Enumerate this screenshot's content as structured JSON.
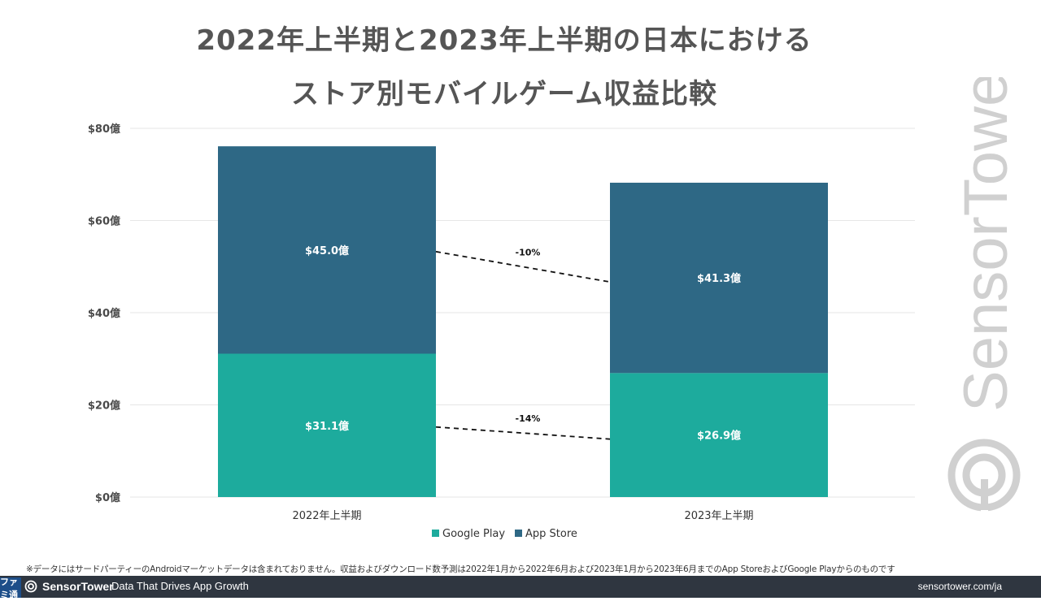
{
  "title_lines": [
    "2022年上半期と2023年上半期の日本における",
    "ストア別モバイルゲーム収益比較"
  ],
  "colors": {
    "google_play": "#1dab9d",
    "app_store": "#2e6885",
    "grid": "#e6e6e6",
    "text": "#4a4a4a",
    "watermark": "#d0d0d0"
  },
  "chart_data": {
    "type": "bar",
    "stacked": true,
    "title": "2022年上半期と2023年上半期の日本におけるストア別モバイルゲーム収益比較",
    "categories": [
      "2022年上半期",
      "2023年上半期"
    ],
    "series": [
      {
        "name": "Google Play",
        "values": [
          31.1,
          26.9
        ],
        "labels": [
          "$31.1億",
          "$26.9億"
        ]
      },
      {
        "name": "App Store",
        "values": [
          45.0,
          41.3
        ],
        "labels": [
          "$45.0億",
          "$41.3億"
        ]
      }
    ],
    "ylim": [
      0,
      80
    ],
    "yticks": [
      0,
      20,
      40,
      60,
      80
    ],
    "ytick_labels": [
      "$0億",
      "$20億",
      "$40億",
      "$60億",
      "$80億"
    ],
    "grid": true,
    "legend": "bottom-center",
    "annotations": [
      {
        "series": "App Store",
        "text": "-10%"
      },
      {
        "series": "Google Play",
        "text": "-14%"
      }
    ]
  },
  "watermark_text": "SensorTower",
  "footnote": "※データにはサードパーティーのAndroidマーケットデータは含まれておりません。収益およびダウンロード数予測は2022年1月から2022年6月および2023年1月から2023年6月までのApp StoreおよびGoogle Playからのものです",
  "footer": {
    "brand": "SensorTower",
    "tagline": "Data That Drives App Growth",
    "url": "sensortower.com/ja"
  },
  "corner_logo_text": "ファミ通"
}
